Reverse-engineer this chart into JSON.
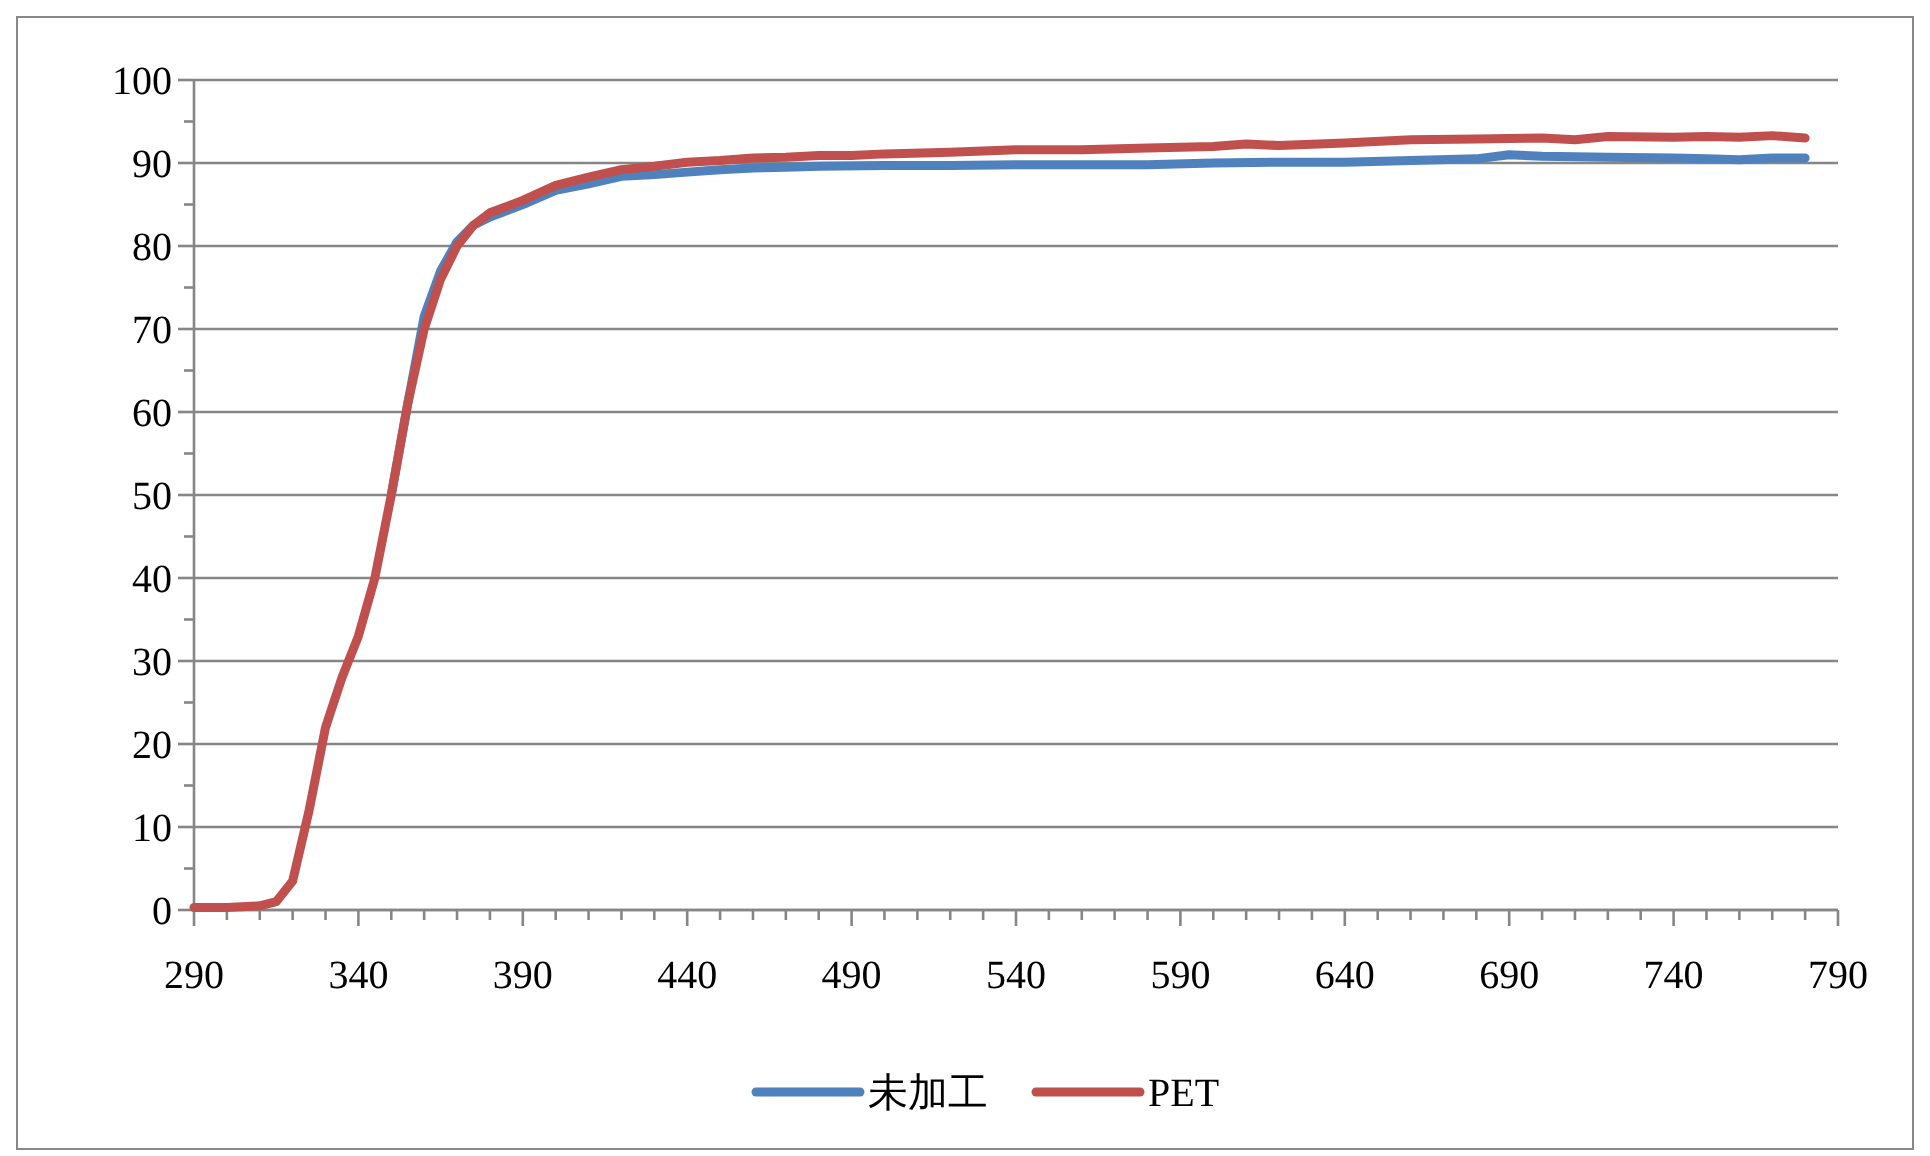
{
  "chart_data": {
    "type": "line",
    "xlim": [
      290,
      790
    ],
    "ylim": [
      0,
      100
    ],
    "xticks": [
      290,
      {
        "value": 300,
        "label": null
      },
      {
        "value": 310,
        "label": null
      },
      {
        "value": 320,
        "label": null
      },
      {
        "value": 330,
        "label": null
      },
      340,
      {
        "value": 350,
        "label": null
      },
      {
        "value": 360,
        "label": null
      },
      {
        "value": 370,
        "label": null
      },
      {
        "value": 380,
        "label": null
      },
      390,
      {
        "value": 400,
        "label": null
      },
      {
        "value": 410,
        "label": null
      },
      {
        "value": 420,
        "label": null
      },
      {
        "value": 430,
        "label": null
      },
      440,
      {
        "value": 450,
        "label": null
      },
      {
        "value": 460,
        "label": null
      },
      {
        "value": 470,
        "label": null
      },
      {
        "value": 480,
        "label": null
      },
      490,
      {
        "value": 500,
        "label": null
      },
      {
        "value": 510,
        "label": null
      },
      {
        "value": 520,
        "label": null
      },
      {
        "value": 530,
        "label": null
      },
      540,
      {
        "value": 550,
        "label": null
      },
      {
        "value": 560,
        "label": null
      },
      {
        "value": 570,
        "label": null
      },
      {
        "value": 580,
        "label": null
      },
      590,
      {
        "value": 600,
        "label": null
      },
      {
        "value": 610,
        "label": null
      },
      {
        "value": 620,
        "label": null
      },
      {
        "value": 630,
        "label": null
      },
      640,
      {
        "value": 650,
        "label": null
      },
      {
        "value": 660,
        "label": null
      },
      {
        "value": 670,
        "label": null
      },
      {
        "value": 680,
        "label": null
      },
      690,
      {
        "value": 700,
        "label": null
      },
      {
        "value": 710,
        "label": null
      },
      {
        "value": 720,
        "label": null
      },
      {
        "value": 730,
        "label": null
      },
      740,
      {
        "value": 750,
        "label": null
      },
      {
        "value": 760,
        "label": null
      },
      {
        "value": 770,
        "label": null
      },
      {
        "value": 780,
        "label": null
      },
      790
    ],
    "yticks": [
      0,
      {
        "value": 5,
        "label": null
      },
      10,
      {
        "value": 15,
        "label": null
      },
      20,
      {
        "value": 25,
        "label": null
      },
      30,
      {
        "value": 35,
        "label": null
      },
      40,
      {
        "value": 45,
        "label": null
      },
      50,
      {
        "value": 55,
        "label": null
      },
      60,
      {
        "value": 65,
        "label": null
      },
      70,
      {
        "value": 75,
        "label": null
      },
      80,
      {
        "value": 85,
        "label": null
      },
      90,
      {
        "value": 95,
        "label": null
      },
      100
    ],
    "grid": "y",
    "legend": "bottom",
    "marker": "none",
    "line_style": "solid",
    "series": [
      {
        "name": "未加工",
        "color": "#4f81bd",
        "x": [
          350,
          355,
          360,
          365,
          370,
          375,
          380,
          390,
          400,
          410,
          420,
          430,
          440,
          450,
          460,
          470,
          480,
          500,
          520,
          540,
          560,
          580,
          600,
          620,
          640,
          660,
          680,
          690,
          700,
          720,
          740,
          750,
          760,
          770,
          780
        ],
        "values": [
          50,
          61,
          71.5,
          77,
          80.5,
          82.5,
          83.5,
          85,
          86.7,
          87.5,
          88.4,
          88.6,
          88.9,
          89.2,
          89.4,
          89.5,
          89.6,
          89.7,
          89.7,
          89.8,
          89.8,
          89.8,
          90,
          90.1,
          90.1,
          90.3,
          90.5,
          91,
          90.8,
          90.7,
          90.6,
          90.5,
          90.4,
          90.6,
          90.6
        ]
      },
      {
        "name": "PET",
        "color": "#c0504d",
        "x": [
          290,
          300,
          310,
          315,
          320,
          325,
          330,
          335,
          340,
          345,
          350,
          355,
          360,
          365,
          370,
          375,
          380,
          390,
          400,
          410,
          420,
          430,
          440,
          450,
          460,
          470,
          480,
          490,
          500,
          520,
          540,
          560,
          580,
          600,
          610,
          620,
          640,
          660,
          680,
          700,
          710,
          720,
          740,
          750,
          760,
          770,
          780
        ],
        "values": [
          0.3,
          0.3,
          0.5,
          1,
          3.5,
          12,
          22,
          28,
          33,
          40,
          50,
          61,
          70,
          76,
          80,
          82.5,
          84,
          85.5,
          87.3,
          88.3,
          89.2,
          89.6,
          90.1,
          90.3,
          90.6,
          90.7,
          90.9,
          90.9,
          91.1,
          91.3,
          91.6,
          91.6,
          91.8,
          92,
          92.3,
          92.1,
          92.4,
          92.8,
          92.9,
          93,
          92.8,
          93.2,
          93.1,
          93.2,
          93.1,
          93.3,
          93
        ]
      }
    ]
  }
}
